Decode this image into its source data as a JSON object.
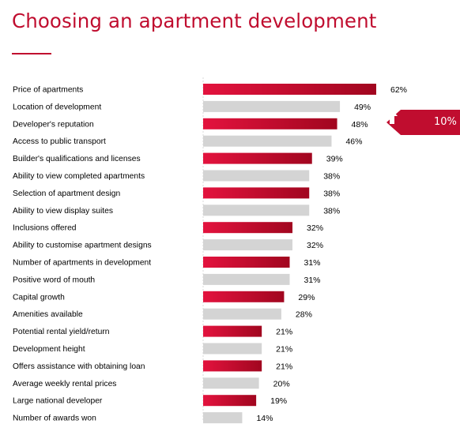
{
  "page": {
    "title": "Choosing an apartment development"
  },
  "callout": {
    "icon": "up-arrow-icon",
    "value": "10%",
    "row": "Developer's reputation",
    "color": "#c00d2f"
  },
  "colors": {
    "highlight_start": "#e3133e",
    "highlight_end": "#a1061f",
    "neutral": "#d4d4d4",
    "accent": "#c00d2f",
    "text": "#000000"
  },
  "chart_data": {
    "type": "bar",
    "orientation": "horizontal",
    "categories": [
      "Price of apartments",
      "Location of development",
      "Developer's reputation",
      "Access to public transport",
      "Builder's qualifications and licenses",
      "Ability to view completed apartments",
      "Selection of apartment design",
      "Ability to view display suites",
      "Inclusions offered",
      "Ability to customise apartment designs",
      "Number of apartments in development",
      "Positive word of mouth",
      "Capital growth",
      "Amenities available",
      "Potential rental yield/return",
      "Development height",
      "Offers assistance with obtaining loan",
      "Average weekly rental prices",
      "Large national developer",
      "Number of awards won"
    ],
    "values": [
      62,
      49,
      48,
      46,
      39,
      38,
      38,
      38,
      32,
      32,
      31,
      31,
      29,
      28,
      21,
      21,
      21,
      20,
      19,
      14
    ],
    "value_labels": [
      "62%",
      "49%",
      "48%",
      "46%",
      "39%",
      "38%",
      "38%",
      "38%",
      "32%",
      "32%",
      "31%",
      "31%",
      "29%",
      "28%",
      "21%",
      "21%",
      "21%",
      "20%",
      "19%",
      "14%"
    ],
    "highlighted": [
      true,
      false,
      true,
      false,
      true,
      false,
      true,
      false,
      true,
      false,
      true,
      false,
      true,
      false,
      true,
      false,
      true,
      false,
      true,
      false
    ],
    "title": "",
    "xlabel": "",
    "ylabel": "",
    "grid": false,
    "legend": "none"
  }
}
